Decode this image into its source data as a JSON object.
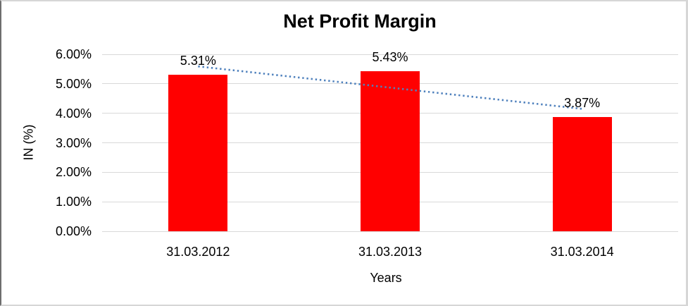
{
  "chart_data": {
    "type": "bar",
    "title": "Net Profit Margin",
    "categories": [
      "31.03.2012",
      "31.03.2013",
      "31.03.2014"
    ],
    "values": [
      5.31,
      5.43,
      3.87
    ],
    "value_labels": [
      "5.31%",
      "5.43%",
      "3.87%"
    ],
    "xlabel": "Years",
    "ylabel": "IN (%)",
    "ylim": [
      0,
      6
    ],
    "ytick_step": 1,
    "ytick_labels": [
      "0.00%",
      "1.00%",
      "2.00%",
      "3.00%",
      "4.00%",
      "5.00%",
      "6.00%"
    ],
    "grid": true,
    "legend": "none",
    "trendline": {
      "type": "linear",
      "style": "dotted",
      "endpoint_values": [
        5.59,
        4.15
      ]
    },
    "colors": {
      "bar": "#FF0000",
      "gridline": "#D9D9D9",
      "trendline": "#4F81BD",
      "text": "#000000"
    }
  }
}
